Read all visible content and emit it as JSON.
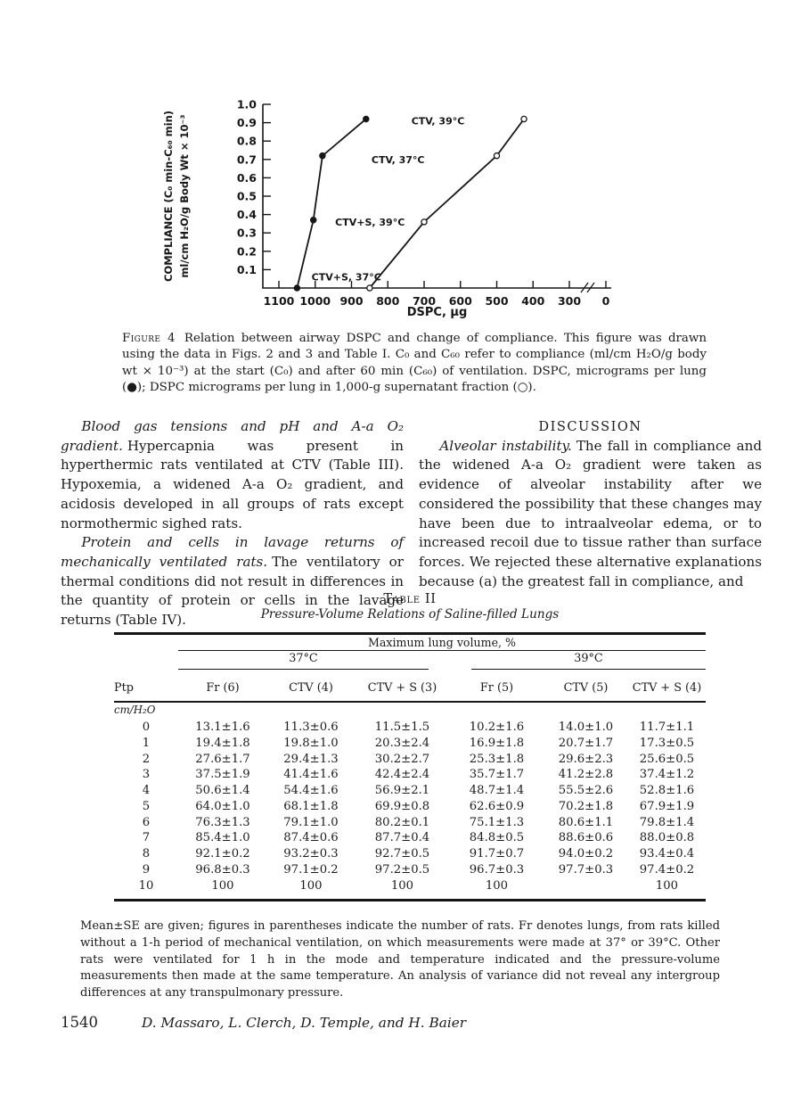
{
  "chart_data": {
    "type": "line",
    "title": "",
    "xlabel": "DSPC, µg",
    "ylabel_line1": "COMPLIANCE (C₀ min-C₆₀ min)",
    "ylabel_line2": "ml/cm H₂O/g Body Wt × 10⁻³",
    "x_axis_reversed": true,
    "xlim": [
      1100,
      0
    ],
    "ylim": [
      0,
      1.0
    ],
    "x_ticks": [
      1100,
      1000,
      900,
      800,
      700,
      600,
      500,
      400,
      300,
      0
    ],
    "y_ticks": [
      0.1,
      0.2,
      0.3,
      0.4,
      0.5,
      0.6,
      0.7,
      0.8,
      0.9,
      1.0
    ],
    "axis_break_between": [
      300,
      0
    ],
    "grid": false,
    "legend_position": "none",
    "series": [
      {
        "name": "DSPC micrograms per lung",
        "marker": "filled",
        "points": [
          [
            1050,
            0
          ],
          [
            1005,
            0.37
          ],
          [
            980,
            0.72
          ],
          [
            860,
            0.92
          ]
        ]
      },
      {
        "name": "DSPC micrograms per lung in 1,000-g supernatant fraction",
        "marker": "open",
        "points": [
          [
            850,
            0
          ],
          [
            700,
            0.36
          ],
          [
            500,
            0.72
          ],
          [
            425,
            0.92
          ]
        ]
      }
    ],
    "annotations": [
      {
        "text": "CTV, 39°C",
        "x": 735,
        "y": 0.91
      },
      {
        "text": "CTV, 37°C",
        "x": 845,
        "y": 0.7
      },
      {
        "text": "CTV+S, 39°C",
        "x": 945,
        "y": 0.36
      },
      {
        "text": "CTV+S, 37°C",
        "x": 1010,
        "y": 0.06
      }
    ]
  },
  "figure_caption": {
    "label": "Figure 4",
    "text": "Relation between airway DSPC and change of compliance. This figure was drawn using the data in Figs. 2 and 3 and Table I. C₀ and C₆₀ refer to compliance (ml/cm H₂O/g body wt × 10⁻³) at the start (C₀) and after 60 min (C₆₀) of ventilation. DSPC, micrograms per lung (●); DSPC micrograms per lung in 1,000-g supernatant fraction (○)."
  },
  "body": {
    "left": {
      "p1_lead": "Blood gas tensions and pH and A-a O₂ gradient.",
      "p1_text": "Hypercapnia was present in hyperthermic rats ventilated at CTV (Table III). Hypoxemia, a widened A-a O₂ gradient, and acidosis developed in all groups of rats except normothermic sighed rats.",
      "p2_lead": "Protein and cells in lavage returns of mechanically ventilated rats.",
      "p2_text": "The ventilatory or thermal conditions did not result in differences in the quantity of protein or cells in the lavage returns (Table IV)."
    },
    "right": {
      "heading": "DISCUSSION",
      "p1_lead": "Alveolar instability.",
      "p1_text": "The fall in compliance and the widened A-a O₂ gradient were taken as evidence of alveolar instability after we considered the possibility that these changes may have been due to intraalveolar edema, or to increased recoil due to tissue rather than surface forces. We rejected these alternative explanations because (a) the greatest fall in compliance, and"
    }
  },
  "table": {
    "title": "Table II",
    "subtitle": "Pressure-Volume Relations of Saline-filled Lungs",
    "spanner": "Maximum lung volume, %",
    "group_headers": [
      "37°C",
      "39°C"
    ],
    "row_header": "Ptp",
    "row_unit": "cm/H₂O",
    "columns": [
      "Fr (6)",
      "CTV (4)",
      "CTV + S (3)",
      "Fr (5)",
      "CTV (5)",
      "CTV + S (4)"
    ],
    "rows": [
      {
        "ptp": "0",
        "values": [
          "13.1±1.6",
          "11.3±0.6",
          "11.5±1.5",
          "10.2±1.6",
          "14.0±1.0",
          "11.7±1.1"
        ]
      },
      {
        "ptp": "1",
        "values": [
          "19.4±1.8",
          "19.8±1.0",
          "20.3±2.4",
          "16.9±1.8",
          "20.7±1.7",
          "17.3±0.5"
        ]
      },
      {
        "ptp": "2",
        "values": [
          "27.6±1.7",
          "29.4±1.3",
          "30.2±2.7",
          "25.3±1.8",
          "29.6±2.3",
          "25.6±0.5"
        ]
      },
      {
        "ptp": "3",
        "values": [
          "37.5±1.9",
          "41.4±1.6",
          "42.4±2.4",
          "35.7±1.7",
          "41.2±2.8",
          "37.4±1.2"
        ]
      },
      {
        "ptp": "4",
        "values": [
          "50.6±1.4",
          "54.4±1.6",
          "56.9±2.1",
          "48.7±1.4",
          "55.5±2.6",
          "52.8±1.6"
        ]
      },
      {
        "ptp": "5",
        "values": [
          "64.0±1.0",
          "68.1±1.8",
          "69.9±0.8",
          "62.6±0.9",
          "70.2±1.8",
          "67.9±1.9"
        ]
      },
      {
        "ptp": "6",
        "values": [
          "76.3±1.3",
          "79.1±1.0",
          "80.2±0.1",
          "75.1±1.3",
          "80.6±1.1",
          "79.8±1.4"
        ]
      },
      {
        "ptp": "7",
        "values": [
          "85.4±1.0",
          "87.4±0.6",
          "87.7±0.4",
          "84.8±0.5",
          "88.6±0.6",
          "88.0±0.8"
        ]
      },
      {
        "ptp": "8",
        "values": [
          "92.1±0.2",
          "93.2±0.3",
          "92.7±0.5",
          "91.7±0.7",
          "94.0±0.2",
          "93.4±0.4"
        ]
      },
      {
        "ptp": "9",
        "values": [
          "96.8±0.3",
          "97.1±0.2",
          "97.2±0.5",
          "96.7±0.3",
          "97.7±0.3",
          "97.4±0.2"
        ]
      },
      {
        "ptp": "10",
        "values": [
          "100",
          "100",
          "100",
          "100",
          "",
          "100"
        ]
      }
    ],
    "footnote": "Mean±SE are given; figures in parentheses indicate the number of rats. Fr denotes lungs, from rats killed without a 1-h period of mechanical ventilation, on which measurements were made at 37° or 39°C. Other rats were ventilated for 1 h in the mode and temperature indicated and the pressure-volume measurements then made at the same temperature. An analysis of variance did not reveal any intergroup differences at any transpulmonary pressure."
  },
  "footer": {
    "page_number": "1540",
    "authors": "D. Massaro, L. Clerch, D. Temple, and H. Baier"
  }
}
